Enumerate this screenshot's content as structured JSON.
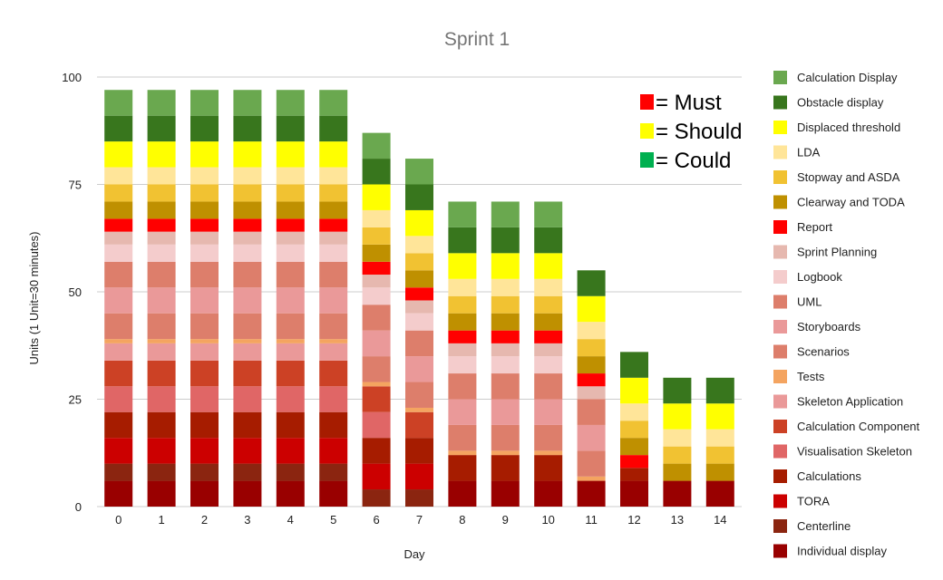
{
  "chart_data": {
    "type": "bar",
    "stacked": true,
    "title": "Sprint 1",
    "xlabel": "Day",
    "ylabel": "Units (1 Unit=30 minutes)",
    "ylim": [
      0,
      100
    ],
    "yticks": [
      0,
      25,
      50,
      75,
      100
    ],
    "grid": true,
    "legend_position": "right",
    "categories": [
      "0",
      "1",
      "2",
      "3",
      "4",
      "5",
      "6",
      "7",
      "8",
      "9",
      "10",
      "11",
      "12",
      "13",
      "14"
    ],
    "priority_key": [
      {
        "label": "= Must",
        "color": "#ff0000"
      },
      {
        "label": "= Should",
        "color": "#ffff00"
      },
      {
        "label": "= Could",
        "color": "#00b050"
      }
    ],
    "series": [
      {
        "name": "Individual display",
        "color": "#990000",
        "values": [
          6,
          6,
          6,
          6,
          6,
          6,
          0,
          0,
          6,
          6,
          6,
          6,
          6,
          6,
          6
        ]
      },
      {
        "name": "Centerline",
        "color": "#8b2510",
        "values": [
          4,
          4,
          4,
          4,
          4,
          4,
          4,
          4,
          0,
          0,
          0,
          0,
          0,
          0,
          0
        ]
      },
      {
        "name": "TORA",
        "color": "#cc0000",
        "values": [
          6,
          6,
          6,
          6,
          6,
          6,
          6,
          6,
          0,
          0,
          0,
          0,
          0,
          0,
          0
        ]
      },
      {
        "name": "Calculations",
        "color": "#a61c00",
        "values": [
          6,
          6,
          6,
          6,
          6,
          6,
          6,
          6,
          6,
          6,
          6,
          0,
          3,
          0,
          0
        ]
      },
      {
        "name": "Visualisation Skeleton",
        "color": "#e06666",
        "values": [
          6,
          6,
          6,
          6,
          6,
          6,
          6,
          0,
          0,
          0,
          0,
          0,
          0,
          0,
          0
        ]
      },
      {
        "name": "Calculation Component",
        "color": "#cc4125",
        "values": [
          6,
          6,
          6,
          6,
          6,
          6,
          6,
          6,
          0,
          0,
          0,
          0,
          0,
          0,
          0
        ]
      },
      {
        "name": "Skeleton Application",
        "color": "#ea9999",
        "values": [
          4,
          4,
          4,
          4,
          4,
          4,
          0,
          0,
          0,
          0,
          0,
          0,
          0,
          0,
          0
        ]
      },
      {
        "name": "Tests",
        "color": "#f4a460",
        "values": [
          1,
          1,
          1,
          1,
          1,
          1,
          1,
          1,
          1,
          1,
          1,
          1,
          0,
          0,
          0
        ]
      },
      {
        "name": "Scenarios",
        "color": "#dd7e6b",
        "values": [
          6,
          6,
          6,
          6,
          6,
          6,
          6,
          6,
          6,
          6,
          6,
          6,
          0,
          0,
          0
        ]
      },
      {
        "name": "Storyboards",
        "color": "#ea9999",
        "values": [
          6,
          6,
          6,
          6,
          6,
          6,
          6,
          6,
          6,
          6,
          6,
          6,
          0,
          0,
          0
        ]
      },
      {
        "name": "UML",
        "color": "#dd7e6b",
        "values": [
          6,
          6,
          6,
          6,
          6,
          6,
          6,
          6,
          6,
          6,
          6,
          6,
          0,
          0,
          0
        ]
      },
      {
        "name": "Logbook",
        "color": "#f4cccc",
        "values": [
          4,
          4,
          4,
          4,
          4,
          4,
          4,
          4,
          4,
          4,
          4,
          0,
          0,
          0,
          0
        ]
      },
      {
        "name": "Sprint Planning",
        "color": "#e6b8af",
        "values": [
          3,
          3,
          3,
          3,
          3,
          3,
          3,
          3,
          3,
          3,
          3,
          3,
          0,
          0,
          0
        ]
      },
      {
        "name": "Report",
        "color": "#ff0000",
        "values": [
          3,
          3,
          3,
          3,
          3,
          3,
          3,
          3,
          3,
          3,
          3,
          3,
          3,
          0,
          0
        ]
      },
      {
        "name": "Clearway and TODA",
        "color": "#bf9000",
        "values": [
          4,
          4,
          4,
          4,
          4,
          4,
          4,
          4,
          4,
          4,
          4,
          4,
          4,
          4,
          4
        ]
      },
      {
        "name": "Stopway and ASDA",
        "color": "#f1c232",
        "values": [
          4,
          4,
          4,
          4,
          4,
          4,
          4,
          4,
          4,
          4,
          4,
          4,
          4,
          4,
          4
        ]
      },
      {
        "name": "LDA",
        "color": "#ffe599",
        "values": [
          4,
          4,
          4,
          4,
          4,
          4,
          4,
          4,
          4,
          4,
          4,
          4,
          4,
          4,
          4
        ]
      },
      {
        "name": "Displaced threshold",
        "color": "#ffff00",
        "values": [
          6,
          6,
          6,
          6,
          6,
          6,
          6,
          6,
          6,
          6,
          6,
          6,
          6,
          6,
          6
        ]
      },
      {
        "name": "Obstacle display",
        "color": "#38761d",
        "values": [
          6,
          6,
          6,
          6,
          6,
          6,
          6,
          6,
          6,
          6,
          6,
          6,
          6,
          6,
          6
        ]
      },
      {
        "name": "Calculation Display",
        "color": "#6aa84f",
        "values": [
          6,
          6,
          6,
          6,
          6,
          6,
          6,
          6,
          6,
          6,
          6,
          0,
          0,
          0,
          0
        ]
      }
    ],
    "legend_order": [
      "Calculation Display",
      "Obstacle display",
      "Displaced threshold",
      "LDA",
      "Stopway and ASDA",
      "Clearway and TODA",
      "Report",
      "Sprint Planning",
      "Logbook",
      "UML",
      "Storyboards",
      "Scenarios",
      "Tests",
      "Skeleton Application",
      "Calculation Component",
      "Visualisation Skeleton",
      "Calculations",
      "TORA",
      "Centerline",
      "Individual display"
    ]
  }
}
